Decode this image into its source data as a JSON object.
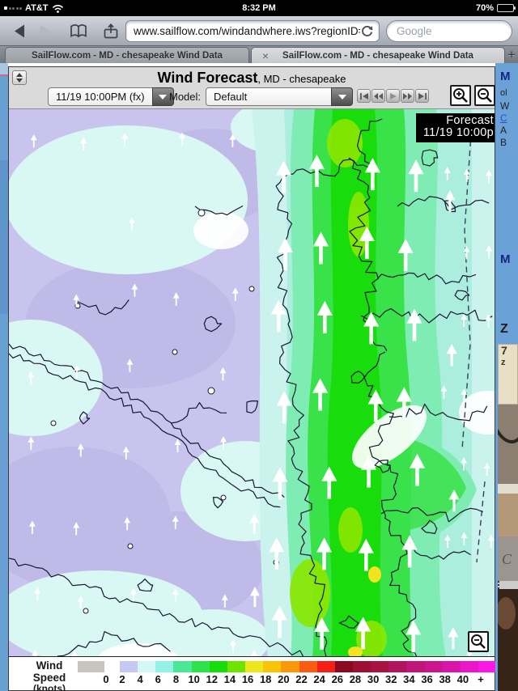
{
  "status_bar": {
    "carrier": "AT&T",
    "time": "8:32 PM",
    "battery_percent": "70%"
  },
  "browser": {
    "url": "www.sailflow.com/windandwhere.iws?regionID=1",
    "search_placeholder": "Google",
    "tabs": [
      {
        "title": "SailFlow.com - MD - chesapeake Wind Data"
      },
      {
        "title": "SailFlow.com - MD - chesapeake Wind Data"
      }
    ],
    "icons": {
      "close_tab": "×",
      "new_tab": "+"
    }
  },
  "forecast": {
    "title": "Wind Forecast",
    "region": ", MD - chesapeake",
    "time_selector": "11/19 10:00PM (fx)",
    "model_label": "Model:",
    "model_selector": "Default",
    "badge": {
      "line1": "Forecast",
      "line2": "11/19 10:00p"
    }
  },
  "legend": {
    "label_line1": "Wind Speed",
    "label_line2": "(knots)",
    "values": [
      "0",
      "2",
      "4",
      "6",
      "8",
      "10",
      "12",
      "14",
      "16",
      "18",
      "20",
      "22",
      "24",
      "26",
      "28",
      "30",
      "32",
      "34",
      "36",
      "38",
      "40",
      "+"
    ],
    "colors": [
      "#c6c6be",
      "#c8c8f4",
      "#d4f8f6",
      "#92f2e6",
      "#4ae896",
      "#2ee24e",
      "#16dc0a",
      "#6ee400",
      "#ece61a",
      "#fac40a",
      "#fa980a",
      "#fa5c14",
      "#f42016",
      "#8c0a20",
      "#9c1034",
      "#a61242",
      "#b2145e",
      "#c01677",
      "#cc168f",
      "#da16aa",
      "#ea16c8",
      "#fa18e6"
    ]
  },
  "side_content": {
    "fragments": [
      "M",
      "ol",
      "W",
      "C",
      "A",
      "B",
      "M",
      "Z",
      "7",
      "z",
      "C"
    ]
  }
}
